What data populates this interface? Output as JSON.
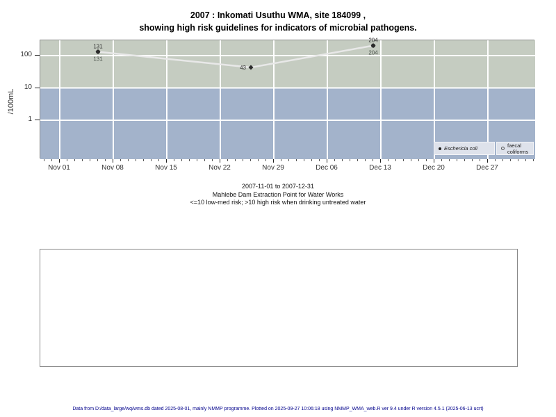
{
  "header": {
    "title_line1": "2007 : Inkomati Usuthu WMA, site 184099 ,",
    "title_line2": "showing high risk guidelines for indicators of microbial pathogens."
  },
  "caption": {
    "line1": "2007-11-01 to 2007-12-31",
    "line2": "Mahlebe Dam Extraction Point for Water Works",
    "line3": "<=10 low-med risk; >10 high risk when drinking untreated water"
  },
  "footer": {
    "text": "Data from D:/data_large/wq/wms.db dated 2025-08-01, mainly NMMP programme. Plotted on 2025-09-27 10:06:18 using NMMP_WMA_web.R ver 9.4 under R version 4.5.1 (2025-06-13 ucrt)"
  },
  "chart_data": {
    "type": "line",
    "title": "2007 : Inkomati Usuthu WMA, site 184099 , showing high risk guidelines for indicators of microbial pathogens.",
    "xlabel": "",
    "ylabel": "/100mL",
    "y_scale": "log10",
    "y_ticks": [
      100,
      10,
      1
    ],
    "ylim": [
      0.25,
      400
    ],
    "x_tick_labels": [
      "Nov 01",
      "Nov 08",
      "Nov 15",
      "Nov 22",
      "Nov 29",
      "Dec 06",
      "Dec 13",
      "Dec 20",
      "Dec 27"
    ],
    "x_tick_days": [
      0,
      7,
      14,
      21,
      28,
      35,
      42,
      49,
      56
    ],
    "risk_threshold": 10,
    "regions": [
      {
        "name": "high-risk-above-10",
        "color": "#c5ccc1"
      },
      {
        "name": "low-med-risk-below-10",
        "color": "#a3b3cb"
      }
    ],
    "grid_color": "#ffffff",
    "series": [
      {
        "name": "Eschericia coli",
        "marker": "filled-diamond",
        "marker_color": "#2b2b2b",
        "line_color": "#e8e8e8",
        "points": [
          {
            "day": 5,
            "x_label": "Nov 06",
            "value": 131,
            "label": "131",
            "label_pos": "above"
          },
          {
            "day": 25,
            "x_label": "Nov 26",
            "value": 43,
            "label": "43",
            "label_pos": "left"
          },
          {
            "day": 41,
            "x_label": "Dec 12",
            "value": 204,
            "label": "204",
            "label_pos": "above"
          }
        ]
      },
      {
        "name": "faecal coliforms",
        "marker": "open-circle",
        "marker_color": "#3a3a3a",
        "line_color": null,
        "points": [
          {
            "day": 5,
            "x_label": "Nov 06",
            "value": 131,
            "label": "131",
            "label_pos": "below"
          },
          {
            "day": 41,
            "x_label": "Dec 12",
            "value": 204,
            "label": "204",
            "label_pos": "below"
          }
        ]
      }
    ],
    "legend": {
      "position": "bottom-right-inside",
      "bg_color": "#dee2eb",
      "entries": [
        {
          "label": "Eschericia coli",
          "marker": "filled-circle",
          "italic": true
        },
        {
          "label": "faecal coliforms",
          "marker": "open-circle",
          "italic": false
        }
      ]
    }
  }
}
